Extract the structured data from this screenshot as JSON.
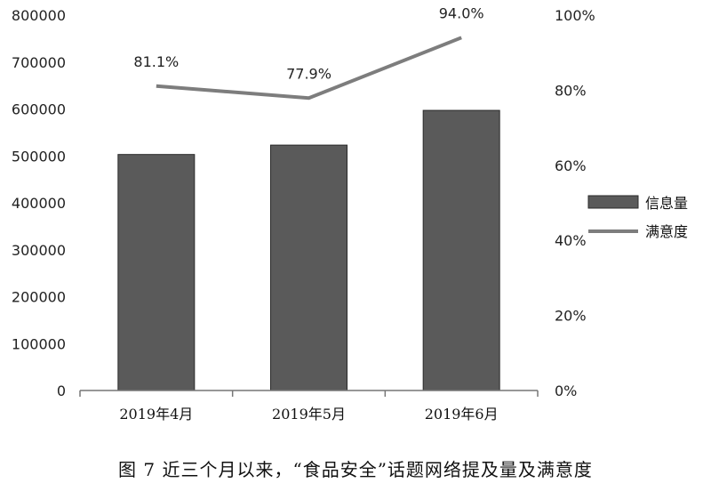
{
  "caption": "图 7 近三个月以来，“食品安全”话题网络提及量及满意度",
  "chart_data": {
    "type": "bar",
    "categories": [
      "2019年4月",
      "2019年5月",
      "2019年6月"
    ],
    "series": [
      {
        "name": "信息量",
        "type": "bar",
        "axis": "left",
        "values": [
          503000,
          523000,
          597000
        ]
      },
      {
        "name": "满意度",
        "type": "line",
        "axis": "right",
        "values": [
          81.1,
          77.9,
          94.0
        ],
        "value_labels": [
          "81.1%",
          "77.9%",
          "94.0%"
        ]
      }
    ],
    "y_left": {
      "ylim": [
        0,
        800000
      ],
      "ticks": [
        "0",
        "100000",
        "200000",
        "300000",
        "400000",
        "500000",
        "600000",
        "700000",
        "800000"
      ]
    },
    "y_right": {
      "ylim": [
        0,
        100
      ],
      "ticks": [
        "0%",
        "20%",
        "40%",
        "60%",
        "80%",
        "100%"
      ]
    },
    "legend": {
      "position": "right",
      "items": [
        "信息量",
        "满意度"
      ]
    },
    "grid": false,
    "colors": {
      "bar": "#5a5a5a",
      "bar_edge": "#2a2a2a",
      "line": "#7d7d7d"
    }
  }
}
